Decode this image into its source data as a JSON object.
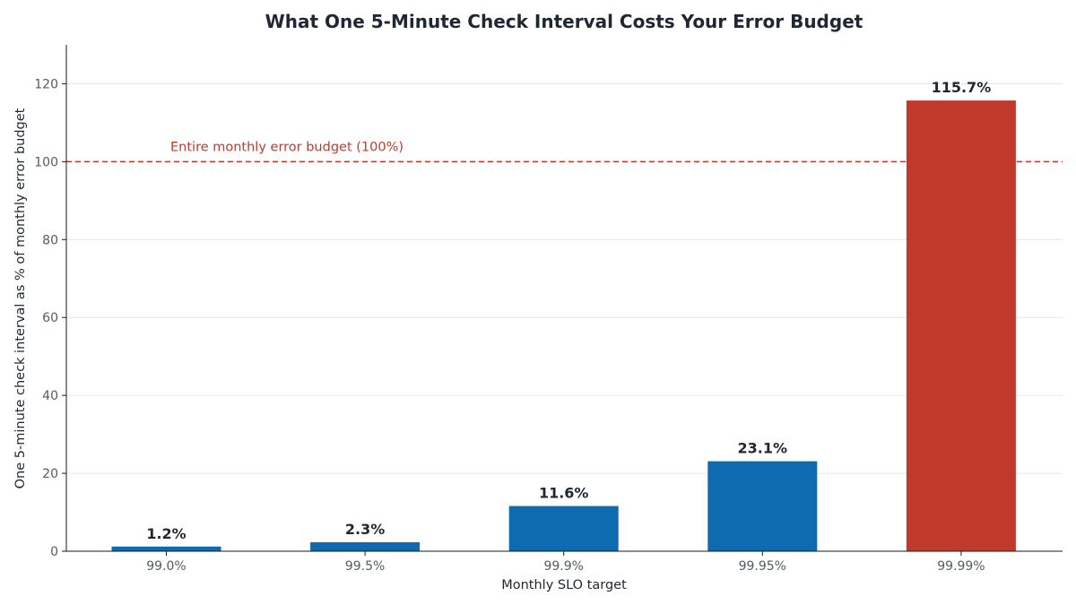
{
  "chart_data": {
    "type": "bar",
    "title": "What One 5-Minute Check Interval Costs Your Error Budget",
    "xlabel": "Monthly SLO target",
    "ylabel": "One 5-minute check interval as % of monthly error budget",
    "categories": [
      "99.0%",
      "99.5%",
      "99.9%",
      "99.95%",
      "99.99%"
    ],
    "values": [
      1.2,
      2.3,
      11.6,
      23.1,
      115.7
    ],
    "data_labels": [
      "1.2%",
      "2.3%",
      "11.6%",
      "23.1%",
      "115.7%"
    ],
    "bar_colors": [
      "#0e6bb0",
      "#0e6bb0",
      "#0e6bb0",
      "#0e6bb0",
      "#c0392b"
    ],
    "ylim": [
      0,
      130
    ],
    "yticks": [
      0,
      20,
      40,
      60,
      80,
      100,
      120
    ],
    "grid": true,
    "reference_line": {
      "value": 100,
      "label": "Entire monthly error budget (100%)",
      "color": "#c0392b",
      "style": "dashed"
    }
  }
}
